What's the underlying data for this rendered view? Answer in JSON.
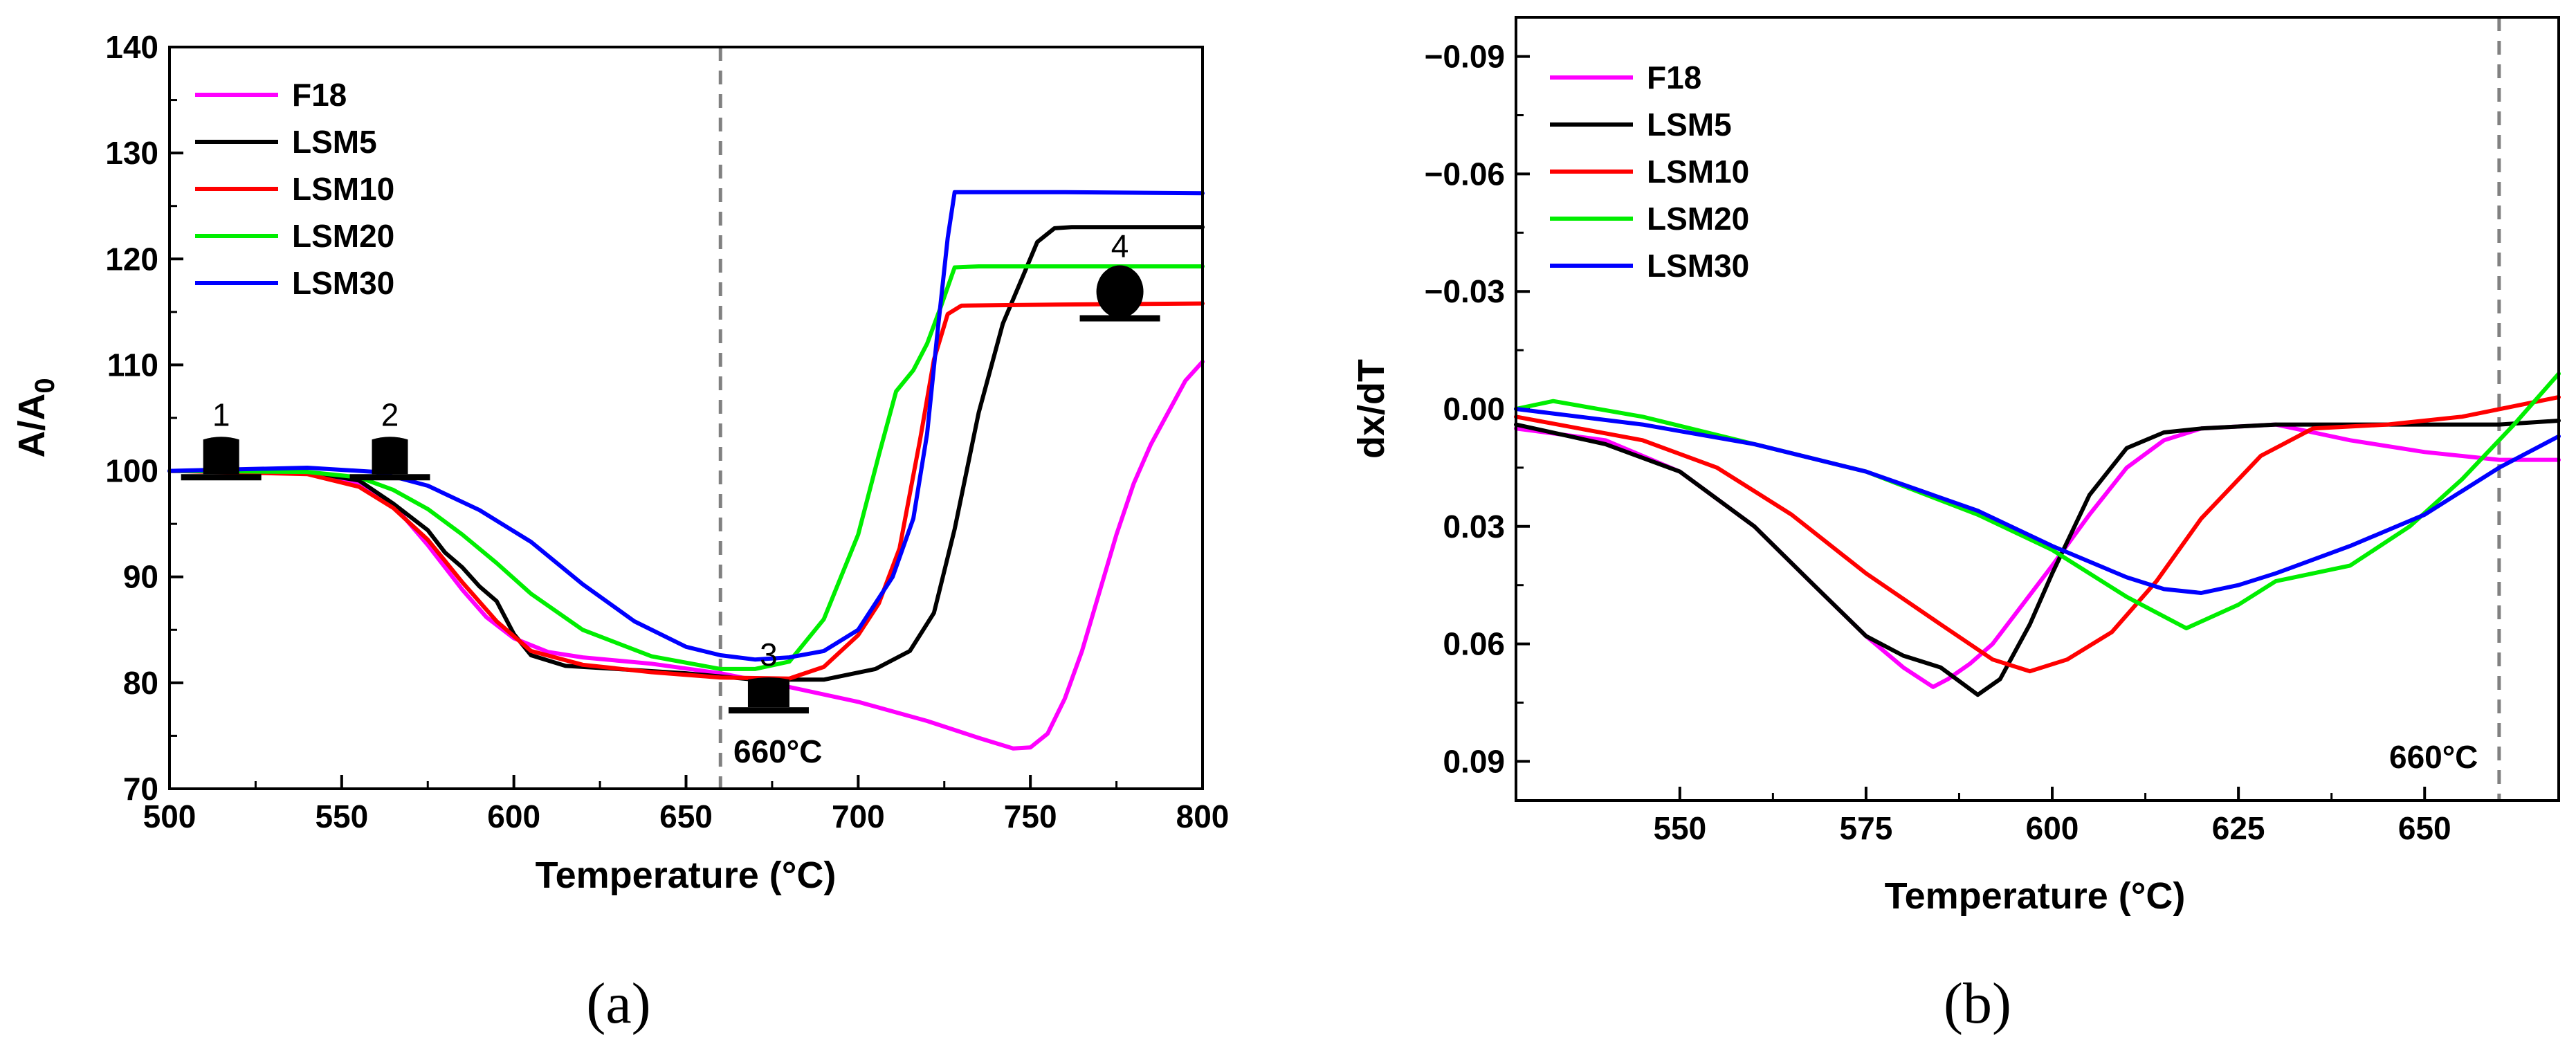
{
  "chart_data": [
    {
      "type": "line",
      "panel_label": "(a)",
      "xlabel": "Temperature (°C)",
      "ylabel_main": "A/A",
      "ylabel_sub": "0",
      "xlim": [
        500,
        800
      ],
      "ylim": [
        70,
        140
      ],
      "xticks": [
        500,
        550,
        600,
        650,
        700,
        750,
        800
      ],
      "yticks": [
        70,
        80,
        90,
        100,
        110,
        120,
        130,
        140
      ],
      "vline": 660,
      "vline_label": "660°C",
      "legend": [
        "F18",
        "LSM5",
        "LSM10",
        "LSM20",
        "LSM30"
      ],
      "stages": [
        {
          "label": "1",
          "shape": "block",
          "x": 515,
          "y": 101
        },
        {
          "label": "2",
          "shape": "block",
          "x": 564,
          "y": 101
        },
        {
          "label": "3",
          "shape": "flat",
          "x": 674,
          "y": 79
        },
        {
          "label": "4",
          "shape": "drop",
          "x": 776,
          "y": 116
        }
      ],
      "series": [
        {
          "name": "F18",
          "color": "#ff00ff",
          "x": [
            500,
            520,
            540,
            555,
            565,
            575,
            585,
            592,
            600,
            610,
            620,
            640,
            660,
            680,
            700,
            720,
            735,
            745,
            750,
            755,
            760,
            765,
            770,
            775,
            780,
            785,
            790,
            795,
            800
          ],
          "y": [
            100,
            100,
            99.8,
            98.8,
            96.8,
            93,
            88.8,
            86.2,
            84.2,
            82.9,
            82.4,
            81.8,
            80.9,
            79.6,
            78.2,
            76.4,
            74.8,
            73.8,
            73.9,
            75.2,
            78.5,
            83,
            88.5,
            94,
            98.8,
            102.5,
            105.5,
            108.5,
            110.3
          ]
        },
        {
          "name": "LSM5",
          "color": "#000000",
          "x": [
            500,
            520,
            540,
            555,
            565,
            575,
            580,
            585,
            590,
            595,
            600,
            605,
            615,
            630,
            650,
            670,
            690,
            705,
            715,
            722,
            728,
            735,
            742,
            748,
            752,
            757,
            762,
            780,
            800
          ],
          "y": [
            100,
            100,
            99.9,
            99.1,
            96.9,
            94.4,
            92.3,
            90.9,
            89.1,
            87.7,
            84.6,
            82.6,
            81.6,
            81.3,
            80.9,
            80.3,
            80.3,
            81.3,
            83,
            86.6,
            94.5,
            105.5,
            113.9,
            118.5,
            121.6,
            122.9,
            123,
            123,
            123
          ]
        },
        {
          "name": "LSM10",
          "color": "#ff0000",
          "x": [
            500,
            540,
            555,
            565,
            575,
            585,
            595,
            605,
            620,
            640,
            660,
            680,
            690,
            700,
            706,
            712,
            718,
            722,
            726,
            730,
            760,
            800
          ],
          "y": [
            100,
            99.7,
            98.5,
            96.5,
            93.5,
            89.5,
            85.8,
            83,
            81.7,
            81,
            80.5,
            80.4,
            81.5,
            84.5,
            87.5,
            92.7,
            103,
            110.5,
            114.8,
            115.6,
            115.7,
            115.8
          ]
        },
        {
          "name": "LSM20",
          "color": "#00ee00",
          "x": [
            500,
            540,
            555,
            565,
            575,
            585,
            595,
            605,
            620,
            640,
            660,
            670,
            680,
            690,
            700,
            706,
            711,
            716,
            720,
            724,
            728,
            735,
            760,
            800
          ],
          "y": [
            100,
            99.9,
            99.4,
            98.2,
            96.4,
            94,
            91.3,
            88.4,
            85,
            82.5,
            81.3,
            81.3,
            82,
            86,
            94,
            101.5,
            107.5,
            109.5,
            112,
            115.5,
            119.2,
            119.3,
            119.3,
            119.3
          ]
        },
        {
          "name": "LSM30",
          "color": "#0000ff",
          "x": [
            500,
            540,
            560,
            575,
            590,
            605,
            620,
            635,
            650,
            660,
            670,
            680,
            690,
            700,
            710,
            716,
            720,
            723,
            726,
            728,
            760,
            800
          ],
          "y": [
            100,
            100.3,
            99.9,
            98.6,
            96.3,
            93.3,
            89.3,
            85.8,
            83.4,
            82.6,
            82.2,
            82.4,
            83,
            85,
            90,
            95.5,
            103.5,
            113,
            122,
            126.3,
            126.3,
            126.2
          ]
        }
      ]
    },
    {
      "type": "line",
      "panel_label": "(b)",
      "xlabel": "Temperature (°C)",
      "ylabel": "dx/dT",
      "xlim": [
        528,
        668
      ],
      "ylim": [
        0.1,
        -0.1
      ],
      "xticks": [
        550,
        575,
        600,
        625,
        650
      ],
      "yticks": [
        -0.09,
        -0.06,
        -0.03,
        0.0,
        0.03,
        0.06,
        0.09
      ],
      "ytick_labels": [
        "−0.09",
        "−0.06",
        "−0.03",
        "0.00",
        "0.03",
        "0.06",
        "0.09"
      ],
      "vline": 660,
      "vline_label": "660°C",
      "legend": [
        "F18",
        "LSM5",
        "LSM10",
        "LSM20",
        "LSM30"
      ],
      "series": [
        {
          "name": "F18",
          "color": "#ff00ff",
          "x": [
            528,
            540,
            550,
            560,
            568,
            575,
            580,
            584,
            586,
            589,
            592,
            596,
            600,
            605,
            610,
            615,
            620,
            630,
            640,
            650,
            660,
            668
          ],
          "y": [
            0.005,
            0.008,
            0.016,
            0.03,
            0.045,
            0.058,
            0.066,
            0.071,
            0.069,
            0.065,
            0.06,
            0.05,
            0.04,
            0.027,
            0.015,
            0.008,
            0.005,
            0.004,
            0.008,
            0.011,
            0.013,
            0.013
          ]
        },
        {
          "name": "LSM5",
          "color": "#000000",
          "x": [
            528,
            540,
            550,
            560,
            568,
            575,
            580,
            585,
            590,
            593,
            597,
            600,
            605,
            610,
            615,
            620,
            630,
            640,
            650,
            660,
            668
          ],
          "y": [
            0.004,
            0.009,
            0.016,
            0.03,
            0.045,
            0.058,
            0.063,
            0.066,
            0.073,
            0.069,
            0.055,
            0.042,
            0.022,
            0.01,
            0.006,
            0.005,
            0.004,
            0.004,
            0.004,
            0.004,
            0.003
          ]
        },
        {
          "name": "LSM10",
          "color": "#ff0000",
          "x": [
            528,
            545,
            555,
            565,
            575,
            585,
            592,
            597,
            602,
            608,
            614,
            620,
            628,
            635,
            645,
            655,
            668
          ],
          "y": [
            0.002,
            0.008,
            0.015,
            0.027,
            0.042,
            0.055,
            0.064,
            0.067,
            0.064,
            0.057,
            0.044,
            0.028,
            0.012,
            0.005,
            0.004,
            0.002,
            -0.003
          ]
        },
        {
          "name": "LSM20",
          "color": "#00ee00",
          "x": [
            528,
            533,
            545,
            560,
            575,
            590,
            600,
            610,
            618,
            625,
            630,
            640,
            648,
            655,
            662,
            668
          ],
          "y": [
            0.0,
            -0.002,
            0.002,
            0.009,
            0.016,
            0.027,
            0.036,
            0.048,
            0.056,
            0.05,
            0.044,
            0.04,
            0.03,
            0.018,
            0.004,
            -0.009
          ]
        },
        {
          "name": "LSM30",
          "color": "#0000ff",
          "x": [
            528,
            545,
            560,
            575,
            590,
            600,
            610,
            615,
            620,
            625,
            630,
            640,
            650,
            660,
            668
          ],
          "y": [
            0.0,
            0.004,
            0.009,
            0.016,
            0.026,
            0.035,
            0.043,
            0.046,
            0.047,
            0.045,
            0.042,
            0.035,
            0.027,
            0.015,
            0.007
          ]
        }
      ]
    }
  ]
}
